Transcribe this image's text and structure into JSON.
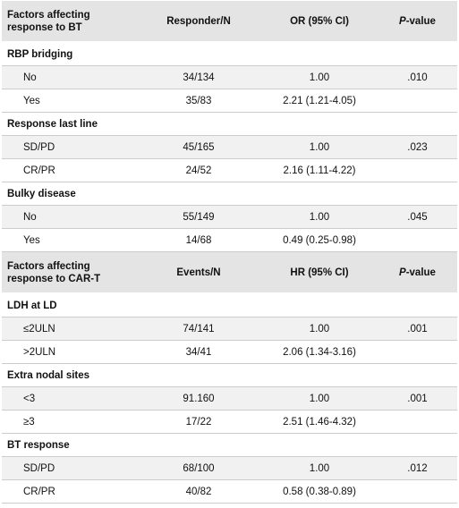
{
  "sections": [
    {
      "header": [
        "Factors affecting response to BT",
        "Responder/N",
        "OR (95% CI)",
        "P-value"
      ],
      "groups": [
        {
          "label": "RBP bridging",
          "rows": [
            [
              "No",
              "34/134",
              "1.00",
              ".010"
            ],
            [
              "Yes",
              "35/83",
              "2.21 (1.21-4.05)"
            ]
          ]
        },
        {
          "label": "Response last line",
          "rows": [
            [
              "SD/PD",
              "45/165",
              "1.00",
              ".023"
            ],
            [
              "CR/PR",
              "24/52",
              "2.16 (1.11-4.22)"
            ]
          ]
        },
        {
          "label": "Bulky disease",
          "rows": [
            [
              "No",
              "55/149",
              "1.00",
              ".045"
            ],
            [
              "Yes",
              "14/68",
              "0.49 (0.25-0.98)"
            ]
          ]
        }
      ]
    },
    {
      "header": [
        "Factors affecting response to CAR-T",
        "Events/N",
        "HR (95% CI)",
        "P-value"
      ],
      "groups": [
        {
          "label": "LDH at LD",
          "rows": [
            [
              "≤2ULN",
              "74/141",
              "1.00",
              ".001"
            ],
            [
              ">2ULN",
              "34/41",
              "2.06 (1.34-3.16)"
            ]
          ]
        },
        {
          "label": "Extra nodal sites",
          "rows": [
            [
              "<3",
              "91.160",
              "1.00",
              ".001"
            ],
            [
              "≥3",
              "17/22",
              "2.51 (1.46-4.32)"
            ]
          ]
        },
        {
          "label": "BT response",
          "rows": [
            [
              "SD/PD",
              "68/100",
              "1.00",
              ".012"
            ],
            [
              "CR/PR",
              "40/82",
              "0.58 (0.38-0.89)"
            ]
          ]
        }
      ]
    }
  ]
}
